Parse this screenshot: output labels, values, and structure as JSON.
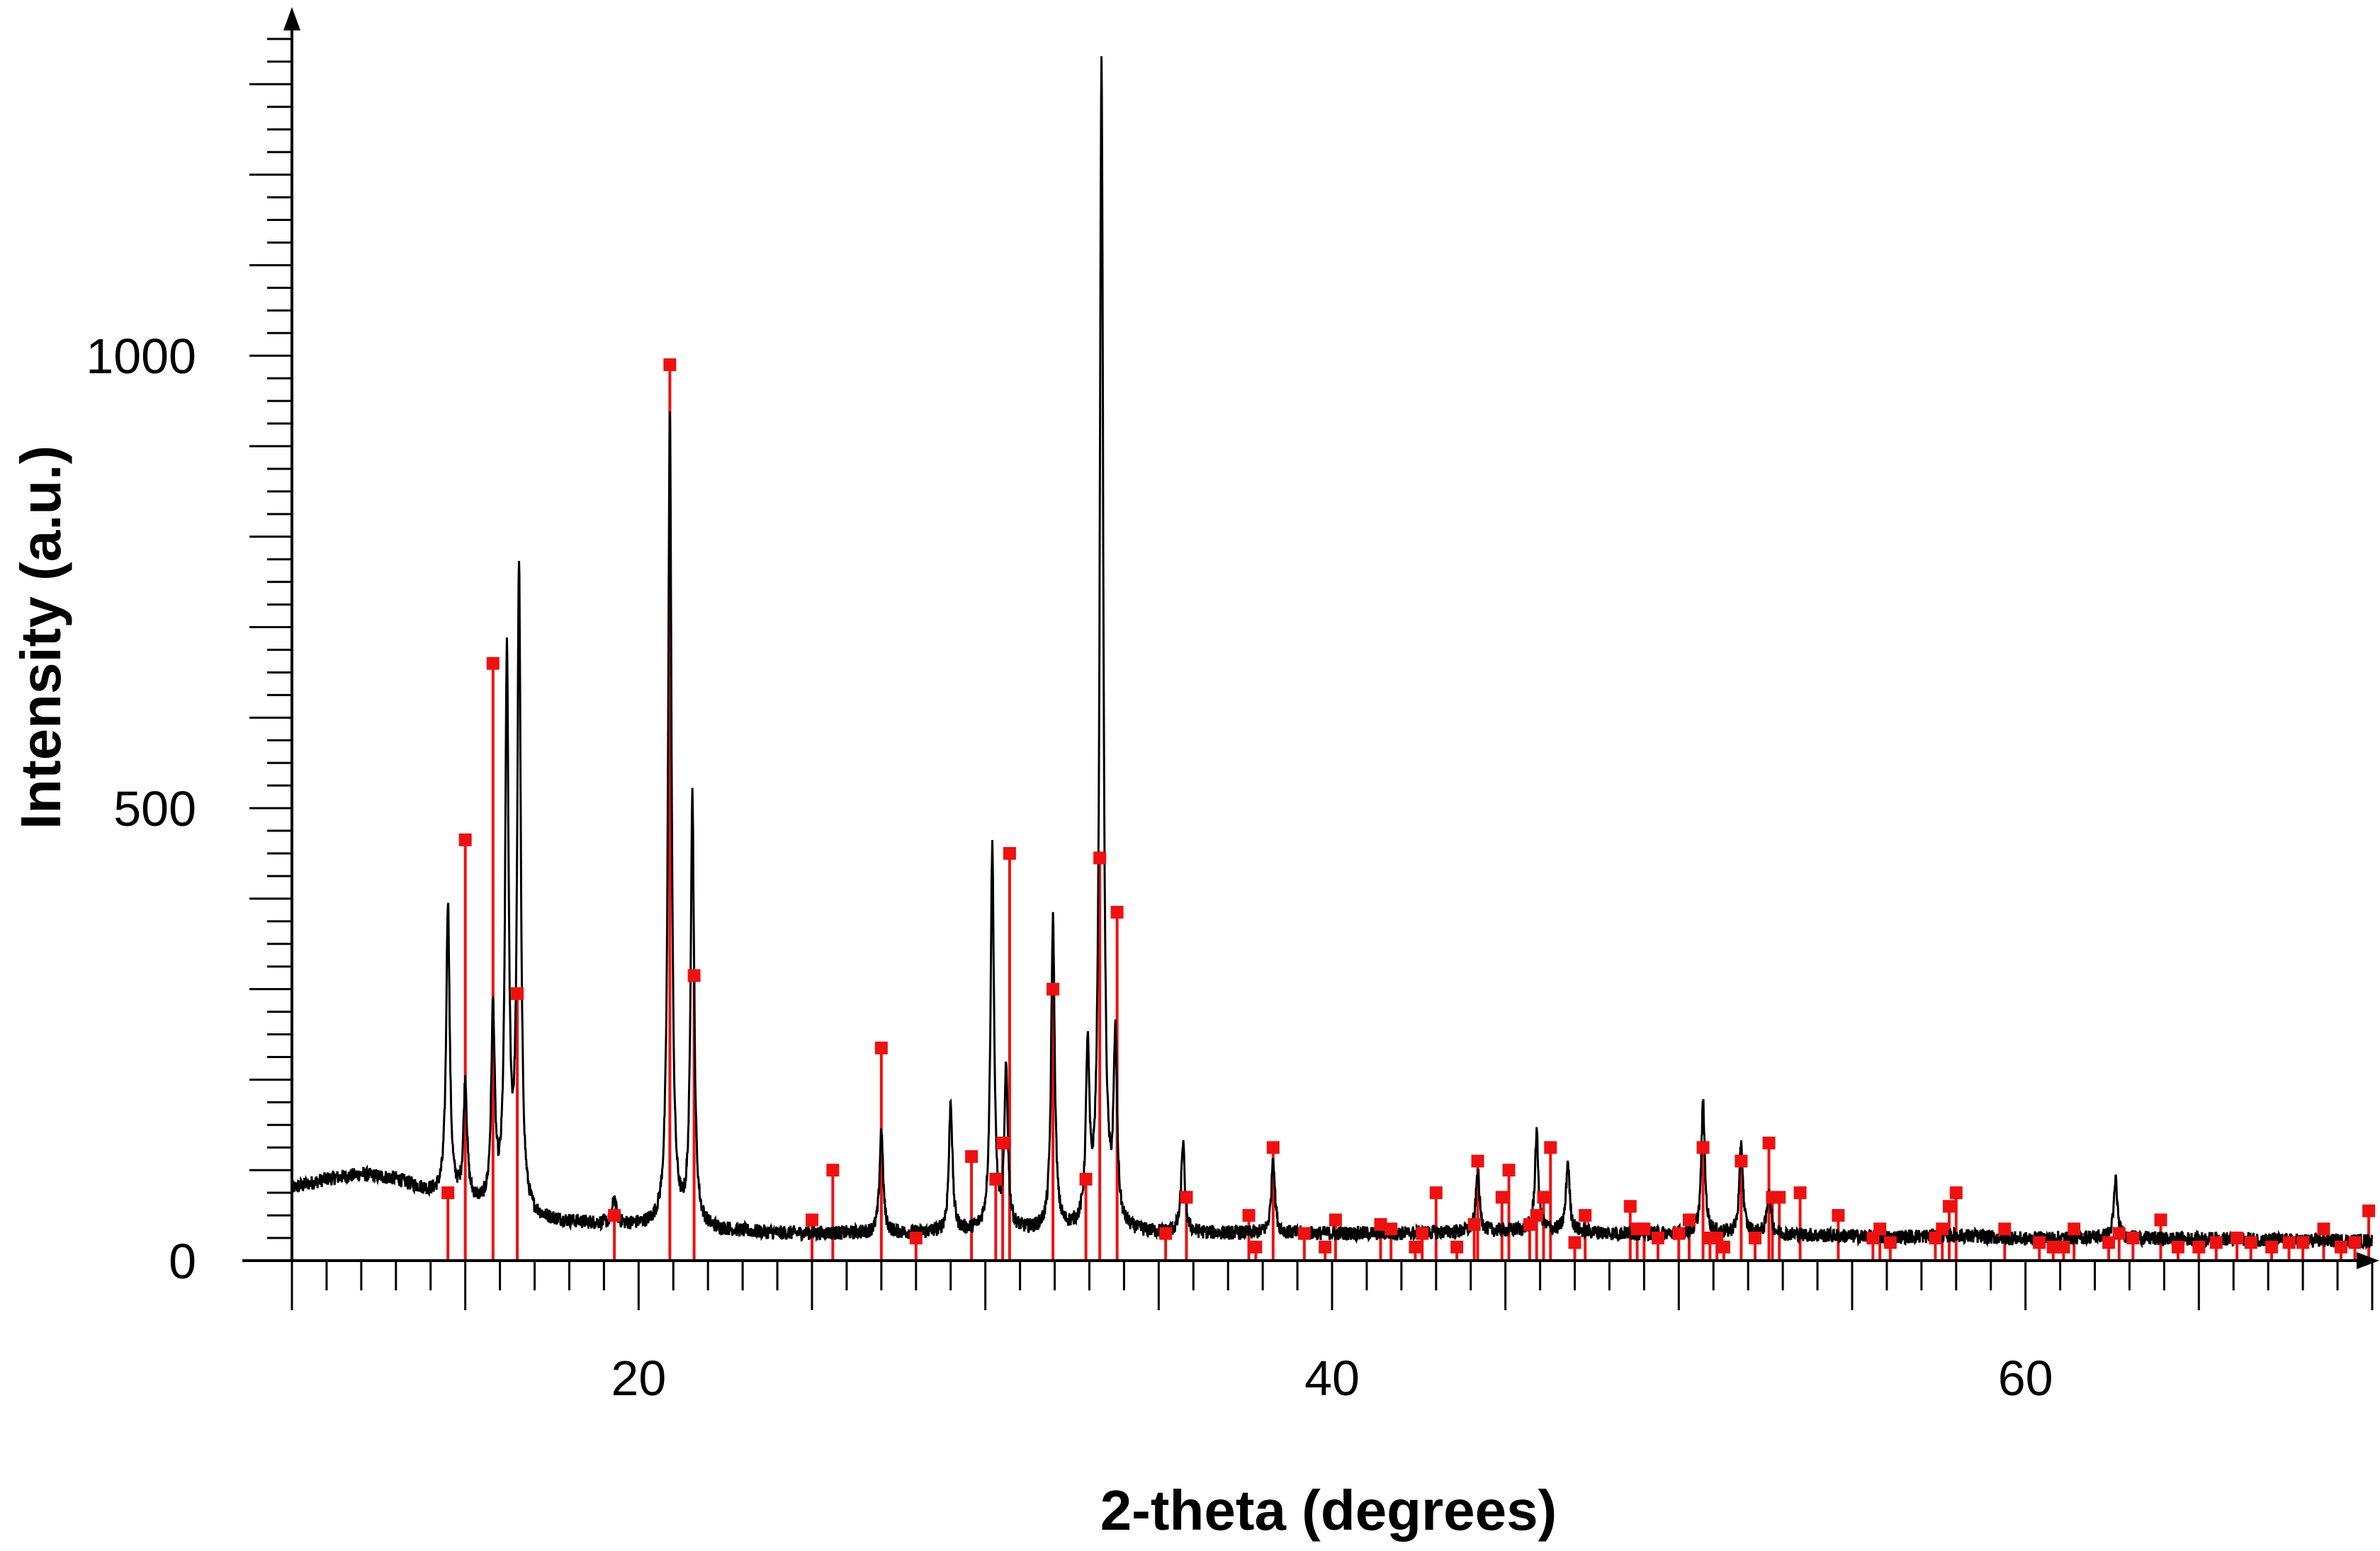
{
  "chart_data": {
    "type": "line",
    "title": "",
    "xlabel": "2-theta (degrees)",
    "ylabel": "Intensity (a.u.)",
    "xlim": [
      10,
      70
    ],
    "ylim": [
      0,
      1350
    ],
    "x_ticks": [
      20,
      40,
      60
    ],
    "x_tick_labels": [
      "20",
      "40",
      "60"
    ],
    "y_ticks": [
      0,
      500,
      1000
    ],
    "y_tick_labels": [
      "0",
      "500",
      "1000"
    ],
    "grid": false,
    "legend": "none",
    "colors": {
      "pattern": "#000000",
      "reference": "#ee1111"
    },
    "series": [
      {
        "type": "line",
        "color": "#000000",
        "baseline": [
          [
            10,
            80
          ],
          [
            11,
            90
          ],
          [
            12,
            95
          ],
          [
            13,
            90
          ],
          [
            14,
            75
          ],
          [
            15,
            65
          ],
          [
            16,
            52
          ],
          [
            17,
            45
          ],
          [
            18,
            42
          ],
          [
            19,
            40
          ],
          [
            20,
            38
          ],
          [
            22,
            34
          ],
          [
            24,
            30
          ],
          [
            26,
            30
          ],
          [
            28,
            30
          ],
          [
            30,
            32
          ],
          [
            32,
            32
          ],
          [
            34,
            30
          ],
          [
            36,
            30
          ],
          [
            38,
            30
          ],
          [
            40,
            30
          ],
          [
            42,
            30
          ],
          [
            44,
            32
          ],
          [
            46,
            34
          ],
          [
            48,
            30
          ],
          [
            50,
            30
          ],
          [
            52,
            30
          ],
          [
            54,
            28
          ],
          [
            56,
            26
          ],
          [
            58,
            28
          ],
          [
            60,
            24
          ],
          [
            62,
            26
          ],
          [
            64,
            24
          ],
          [
            66,
            24
          ],
          [
            68,
            22
          ],
          [
            70,
            22
          ]
        ],
        "peaks": [
          {
            "x": 14.5,
            "y": 395
          },
          {
            "x": 15.0,
            "y": 195
          },
          {
            "x": 15.8,
            "y": 270
          },
          {
            "x": 16.2,
            "y": 655
          },
          {
            "x": 16.55,
            "y": 755
          },
          {
            "x": 19.3,
            "y": 68
          },
          {
            "x": 20.9,
            "y": 935
          },
          {
            "x": 21.55,
            "y": 510
          },
          {
            "x": 27.0,
            "y": 145
          },
          {
            "x": 29.0,
            "y": 175
          },
          {
            "x": 30.2,
            "y": 455
          },
          {
            "x": 30.6,
            "y": 205
          },
          {
            "x": 31.95,
            "y": 375
          },
          {
            "x": 32.95,
            "y": 220
          },
          {
            "x": 33.35,
            "y": 1315
          },
          {
            "x": 33.75,
            "y": 230
          },
          {
            "x": 35.7,
            "y": 130
          },
          {
            "x": 38.3,
            "y": 115
          },
          {
            "x": 44.2,
            "y": 100
          },
          {
            "x": 45.9,
            "y": 140
          },
          {
            "x": 46.8,
            "y": 110
          },
          {
            "x": 50.7,
            "y": 175
          },
          {
            "x": 51.8,
            "y": 130
          },
          {
            "x": 52.6,
            "y": 80
          },
          {
            "x": 62.6,
            "y": 90
          }
        ]
      },
      {
        "type": "stick",
        "color": "#ee1111",
        "positions": [
          14.5,
          15.0,
          15.8,
          16.5,
          19.3,
          20.9,
          21.6,
          25.0,
          25.6,
          27.0,
          28.0,
          29.6,
          30.3,
          30.5,
          30.7,
          31.95,
          32.9,
          33.3,
          33.8,
          35.2,
          35.8,
          37.6,
          37.8,
          38.3,
          39.2,
          39.8,
          40.1,
          41.4,
          41.7,
          42.4,
          42.6,
          43.0,
          43.6,
          44.1,
          44.2,
          44.9,
          45.1,
          45.7,
          45.9,
          46.1,
          46.3,
          47.0,
          47.3,
          48.6,
          48.8,
          49.0,
          49.4,
          50.0,
          50.3,
          50.7,
          50.9,
          51.1,
          51.3,
          51.8,
          52.2,
          52.6,
          52.7,
          52.9,
          53.5,
          54.6,
          55.6,
          55.8,
          56.1,
          57.4,
          57.6,
          57.8,
          58.0,
          59.4,
          60.4,
          60.8,
          61.1,
          61.4,
          62.4,
          62.7,
          63.1,
          63.9,
          64.4,
          65.0,
          65.5,
          66.1,
          66.5,
          67.1,
          67.6,
          68.0,
          68.6,
          69.1,
          69.5,
          69.9
        ],
        "values": [
          75,
          465,
          660,
          295,
          50,
          990,
          315,
          45,
          100,
          235,
          25,
          115,
          90,
          130,
          450,
          300,
          90,
          445,
          385,
          30,
          70,
          50,
          15,
          125,
          30,
          15,
          45,
          40,
          35,
          15,
          30,
          75,
          15,
          40,
          110,
          70,
          100,
          40,
          50,
          70,
          125,
          20,
          50,
          60,
          35,
          35,
          25,
          30,
          45,
          125,
          25,
          25,
          15,
          110,
          25,
          130,
          70,
          70,
          75,
          50,
          25,
          35,
          20,
          25,
          35,
          60,
          75,
          35,
          20,
          15,
          15,
          35,
          20,
          30,
          25,
          45,
          15,
          15,
          20,
          25,
          20,
          15,
          20,
          20,
          35,
          15,
          20,
          55
        ]
      }
    ]
  }
}
